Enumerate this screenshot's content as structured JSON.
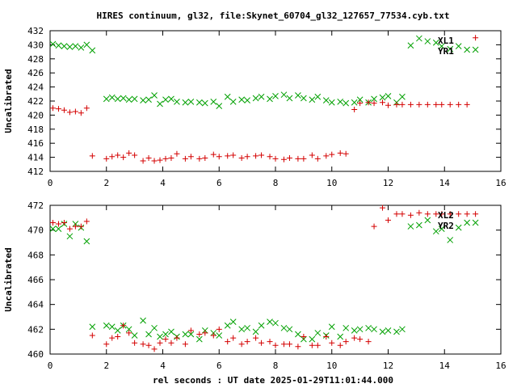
{
  "chart_data": [
    {
      "type": "scatter",
      "title": "HIRES continuum, gl32, file:Skynet_60704_gl32_127657_77534.cyb.txt",
      "xlabel": "",
      "ylabel": "Uncalibrated",
      "xlim": [
        0,
        16
      ],
      "ylim": [
        412,
        432
      ],
      "xticks": [
        "0",
        "2",
        "4",
        "6",
        "8",
        "10",
        "12",
        "14",
        "16"
      ],
      "yticks": [
        "412",
        "414",
        "416",
        "418",
        "420",
        "422",
        "424",
        "426",
        "428",
        "430",
        "432"
      ],
      "legend_position": "top-right",
      "series": [
        {
          "name": "XL1",
          "color": "#00a000",
          "marker": "x",
          "x": [
            0.1,
            0.3,
            0.5,
            0.7,
            0.9,
            1.1,
            1.3,
            1.5,
            2.0,
            2.2,
            2.4,
            2.6,
            2.8,
            3.0,
            3.3,
            3.5,
            3.7,
            3.9,
            4.1,
            4.3,
            4.5,
            4.8,
            5.0,
            5.3,
            5.5,
            5.8,
            6.0,
            6.3,
            6.5,
            6.8,
            7.0,
            7.3,
            7.5,
            7.8,
            8.0,
            8.3,
            8.5,
            8.8,
            9.0,
            9.3,
            9.5,
            9.8,
            10.0,
            10.3,
            10.5,
            10.8,
            11.0,
            11.3,
            11.5,
            11.8,
            12.0,
            12.3,
            12.5,
            12.8,
            13.1,
            13.4,
            13.7,
            13.9,
            14.2,
            14.5,
            14.8,
            15.1
          ],
          "y": [
            430.1,
            429.9,
            429.8,
            429.7,
            429.8,
            429.6,
            430.0,
            429.2,
            422.3,
            422.5,
            422.3,
            422.4,
            422.2,
            422.3,
            422.1,
            422.2,
            422.8,
            421.6,
            422.2,
            422.3,
            421.9,
            421.8,
            421.9,
            421.8,
            421.7,
            421.9,
            421.3,
            422.6,
            421.9,
            422.2,
            422.1,
            422.4,
            422.6,
            422.3,
            422.7,
            422.9,
            422.4,
            422.8,
            422.4,
            422.2,
            422.6,
            422.1,
            421.8,
            421.9,
            421.7,
            421.8,
            422.2,
            421.8,
            422.3,
            422.5,
            422.7,
            421.8,
            422.6,
            429.9,
            430.9,
            430.5,
            430.3,
            429.8,
            429.4,
            429.8,
            429.3,
            429.3
          ],
          "note": "approximate readings"
        },
        {
          "name": "YR1",
          "color": "#d40000",
          "marker": "+",
          "x": [
            0.1,
            0.3,
            0.5,
            0.7,
            0.9,
            1.1,
            1.3,
            1.5,
            2.0,
            2.2,
            2.4,
            2.6,
            2.8,
            3.0,
            3.3,
            3.5,
            3.7,
            3.9,
            4.1,
            4.3,
            4.5,
            4.8,
            5.0,
            5.3,
            5.5,
            5.8,
            6.0,
            6.3,
            6.5,
            6.8,
            7.0,
            7.3,
            7.5,
            7.8,
            8.0,
            8.3,
            8.5,
            8.8,
            9.0,
            9.3,
            9.5,
            9.8,
            10.0,
            10.3,
            10.5,
            10.8,
            11.0,
            11.3,
            11.5,
            11.8,
            12.0,
            12.3,
            12.5,
            12.8,
            13.1,
            13.4,
            13.7,
            13.9,
            14.2,
            14.5,
            14.8,
            15.1
          ],
          "y": [
            421.0,
            420.9,
            420.7,
            420.4,
            420.5,
            420.3,
            421.0,
            414.2,
            413.8,
            414.1,
            414.3,
            414.0,
            414.6,
            414.3,
            413.5,
            413.9,
            413.5,
            413.6,
            413.8,
            413.9,
            414.5,
            413.8,
            414.1,
            413.8,
            413.9,
            414.4,
            414.1,
            414.2,
            414.3,
            413.9,
            414.1,
            414.2,
            414.3,
            414.1,
            413.8,
            413.7,
            413.9,
            413.8,
            413.8,
            414.3,
            413.8,
            414.2,
            414.4,
            414.6,
            414.5,
            420.8,
            421.7,
            421.8,
            421.7,
            421.8,
            421.4,
            421.5,
            421.5,
            421.5,
            421.5,
            421.5,
            421.5,
            421.5,
            421.5,
            421.5,
            421.5,
            431.0
          ],
          "note": "approximate readings"
        }
      ]
    },
    {
      "type": "scatter",
      "title": "",
      "xlabel": "rel seconds : UT date 2025-01-29T11:01:44.000",
      "ylabel": "Uncalibrated",
      "xlim": [
        0,
        16
      ],
      "ylim": [
        460,
        472
      ],
      "xticks": [
        "0",
        "2",
        "4",
        "6",
        "8",
        "10",
        "12",
        "14",
        "16"
      ],
      "yticks": [
        "460",
        "462",
        "464",
        "466",
        "468",
        "470",
        "472"
      ],
      "legend_position": "top-right",
      "series": [
        {
          "name": "XL2",
          "color": "#00a000",
          "marker": "x",
          "x": [
            0.1,
            0.3,
            0.5,
            0.7,
            0.9,
            1.1,
            1.3,
            1.5,
            2.0,
            2.2,
            2.4,
            2.6,
            2.8,
            3.0,
            3.3,
            3.5,
            3.7,
            3.9,
            4.1,
            4.3,
            4.5,
            4.8,
            5.0,
            5.3,
            5.5,
            5.8,
            6.0,
            6.3,
            6.5,
            6.8,
            7.0,
            7.3,
            7.5,
            7.8,
            8.0,
            8.3,
            8.5,
            8.8,
            9.0,
            9.3,
            9.5,
            9.8,
            10.0,
            10.3,
            10.5,
            10.8,
            11.0,
            11.3,
            11.5,
            11.8,
            12.0,
            12.3,
            12.5,
            12.8,
            13.1,
            13.4,
            13.7,
            13.9,
            14.2,
            14.5,
            14.8,
            15.1
          ],
          "y": [
            470.1,
            470.1,
            470.5,
            469.5,
            470.5,
            470.2,
            469.1,
            462.2,
            462.3,
            462.2,
            461.9,
            462.3,
            462.0,
            461.5,
            462.7,
            461.6,
            462.1,
            461.4,
            461.6,
            461.8,
            461.4,
            461.6,
            461.6,
            461.2,
            461.9,
            461.7,
            461.5,
            462.3,
            462.6,
            462.0,
            462.1,
            461.8,
            462.3,
            462.6,
            462.5,
            462.1,
            462.0,
            461.6,
            461.2,
            461.2,
            461.7,
            461.5,
            462.2,
            461.4,
            462.1,
            461.9,
            462.0,
            462.1,
            462.0,
            461.8,
            461.9,
            461.8,
            462.0,
            470.3,
            470.4,
            470.8,
            469.9,
            470.1,
            469.2,
            470.2,
            470.6,
            470.6
          ],
          "note": "approximate readings"
        },
        {
          "name": "YR2",
          "color": "#d40000",
          "marker": "+",
          "x": [
            0.1,
            0.3,
            0.5,
            0.7,
            0.9,
            1.1,
            1.3,
            1.5,
            2.0,
            2.2,
            2.4,
            2.6,
            2.8,
            3.0,
            3.3,
            3.5,
            3.7,
            3.9,
            4.1,
            4.3,
            4.5,
            4.8,
            5.0,
            5.3,
            5.5,
            5.8,
            6.0,
            6.3,
            6.5,
            6.8,
            7.0,
            7.3,
            7.5,
            7.8,
            8.0,
            8.3,
            8.5,
            8.8,
            9.0,
            9.3,
            9.5,
            9.8,
            10.0,
            10.3,
            10.5,
            10.8,
            11.0,
            11.3,
            11.5,
            11.8,
            12.0,
            12.3,
            12.5,
            12.8,
            13.1,
            13.4,
            13.7,
            13.9,
            14.2,
            14.5,
            14.8,
            15.1
          ],
          "y": [
            470.6,
            470.5,
            470.6,
            470.1,
            470.3,
            470.3,
            470.7,
            461.5,
            460.8,
            461.3,
            461.4,
            462.3,
            461.7,
            460.9,
            460.8,
            460.7,
            460.4,
            460.9,
            461.2,
            460.9,
            461.3,
            460.8,
            461.9,
            461.6,
            461.7,
            461.5,
            462.0,
            461.0,
            461.3,
            460.8,
            461.0,
            461.3,
            460.9,
            461.0,
            460.7,
            460.8,
            460.8,
            460.6,
            461.4,
            460.7,
            460.7,
            461.4,
            460.9,
            460.7,
            461.0,
            461.3,
            461.2,
            461.0,
            470.3,
            471.8,
            470.8,
            471.3,
            471.3,
            471.2,
            471.4,
            471.3,
            471.3,
            471.3,
            471.3,
            471.3,
            471.3,
            471.3
          ],
          "note": "approximate readings"
        }
      ]
    }
  ]
}
